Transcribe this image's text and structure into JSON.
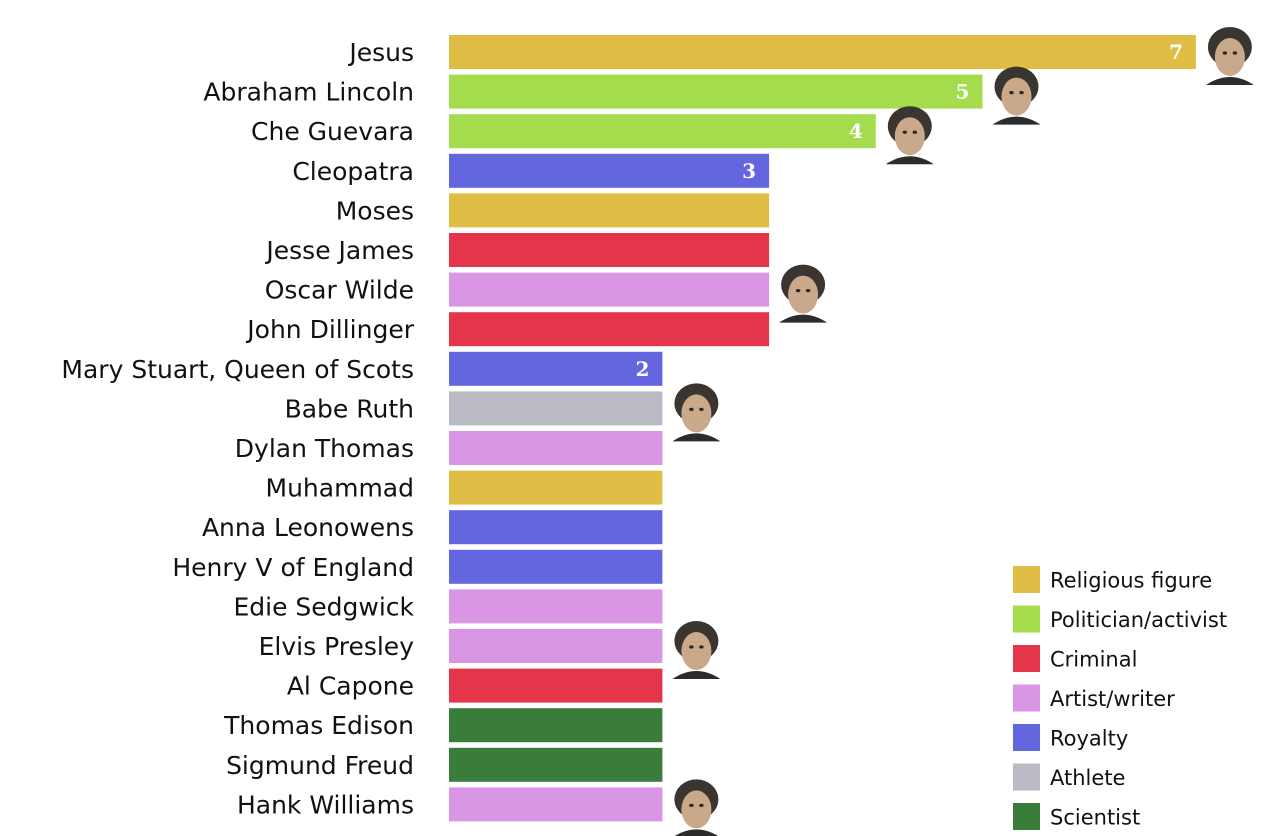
{
  "chart_data": {
    "type": "bar",
    "orientation": "horizontal",
    "categories": [
      "Jesus",
      "Abraham Lincoln",
      "Che Guevara",
      "Cleopatra",
      "Moses",
      "Jesse James",
      "Oscar Wilde",
      "John Dillinger",
      "Mary Stuart, Queen of Scots",
      "Babe Ruth",
      "Dylan Thomas",
      "Muhammad",
      "Anna Leonowens",
      "Henry V of England",
      "Edie Sedgwick",
      "Elvis Presley",
      "Al Capone",
      "Thomas Edison",
      "Sigmund Freud",
      "Hank Williams"
    ],
    "values": [
      7,
      5,
      4,
      3,
      3,
      3,
      3,
      3,
      2,
      2,
      2,
      2,
      2,
      2,
      2,
      2,
      2,
      2,
      2,
      2
    ],
    "groups": [
      "Religious figure",
      "Politician/activist",
      "Politician/activist",
      "Royalty",
      "Religious figure",
      "Criminal",
      "Artist/writer",
      "Criminal",
      "Royalty",
      "Athlete",
      "Artist/writer",
      "Religious figure",
      "Royalty",
      "Royalty",
      "Artist/writer",
      "Artist/writer",
      "Criminal",
      "Scientist",
      "Scientist",
      "Artist/writer"
    ],
    "value_labels": [
      "7",
      "5",
      "4",
      "3",
      "",
      "",
      "",
      "",
      "2",
      "",
      "",
      "",
      "",
      "",
      "",
      "",
      "",
      "",
      "",
      ""
    ],
    "portraits": [
      "Jesus",
      "Abraham Lincoln",
      "Che Guevara",
      "Oscar Wilde",
      "Babe Ruth",
      "Elvis Presley",
      "Hank Williams"
    ],
    "xlim": [
      0,
      7
    ],
    "grid": false,
    "legend": {
      "position": "bottom-right",
      "entries": [
        {
          "label": "Religious figure",
          "color": "#e0bd44"
        },
        {
          "label": "Politician/activist",
          "color": "#a5dc4e"
        },
        {
          "label": "Criminal",
          "color": "#e5354b"
        },
        {
          "label": "Artist/writer",
          "color": "#d896e5"
        },
        {
          "label": "Royalty",
          "color": "#6466df"
        },
        {
          "label": "Athlete",
          "color": "#b9bac3"
        },
        {
          "label": "Scientist",
          "color": "#3a7d3b"
        }
      ]
    },
    "title": "",
    "xlabel": "",
    "ylabel": ""
  }
}
